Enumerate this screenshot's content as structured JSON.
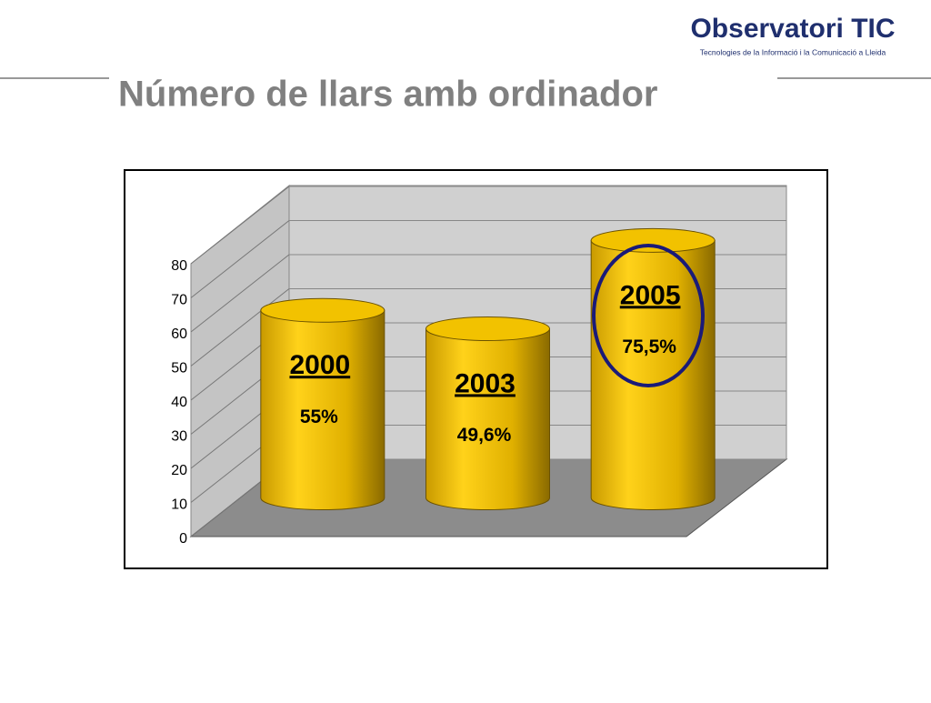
{
  "header": {
    "logo_title": "Observatori TIC",
    "logo_subtitle": "Tecnologies de la Informació i la Comunicació a Lleida"
  },
  "chart_data": {
    "type": "cylinder",
    "title": "Número de llars amb ordinador",
    "categories": [
      "2000",
      "2003",
      "2005"
    ],
    "values": [
      55,
      49.6,
      75.5
    ],
    "value_labels": [
      "55%",
      "49,6%",
      "75,5%"
    ],
    "color": "#f2c200",
    "ylim": [
      0,
      80
    ],
    "yticks": [
      0,
      10,
      20,
      30,
      40,
      50,
      60,
      70,
      80
    ],
    "grid": true
  }
}
